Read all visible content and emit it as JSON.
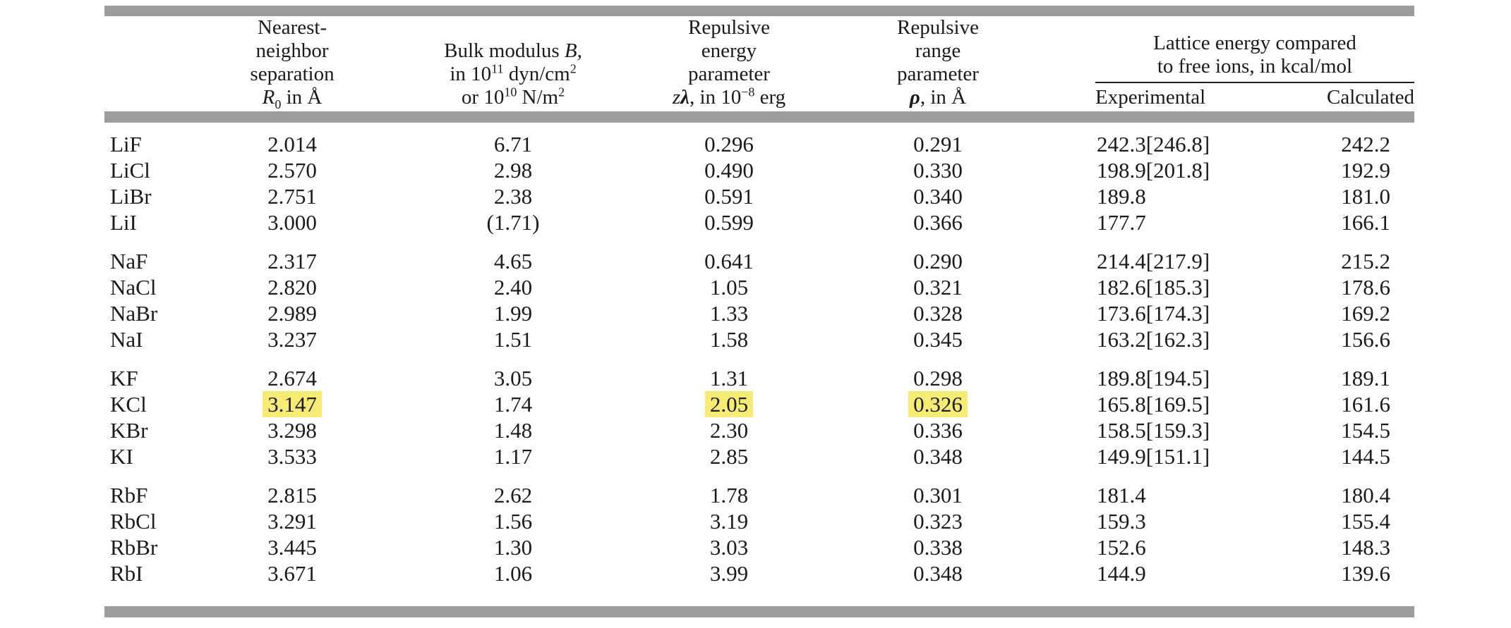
{
  "colors": {
    "double_rule_gray": "#9d9d9d",
    "highlight_yellow": "#f6ec72",
    "text_ink": "#1b1b1b",
    "spanner_rule": "#1f1f1f",
    "background": "#ffffff"
  },
  "header": {
    "r0": {
      "lines": [
        "Nearest-",
        "neighbor",
        "separation"
      ],
      "sym": "R",
      "sub": "0",
      "rest": " in Å"
    },
    "bulk": {
      "pre": "Bulk modulus ",
      "sym": "B",
      "post": ",",
      "l2a": "in 10",
      "l2sup": "11",
      "l2b": " dyn/cm",
      "l2sup2": "2",
      "l3a": "or 10",
      "l3sup": "10",
      "l3b": " N/m",
      "l3sup2": "2"
    },
    "zl": {
      "lines": [
        "Repulsive",
        "energy",
        "parameter"
      ],
      "sym1": "z",
      "sym2": "λ",
      "resta": ", in 10",
      "restsup": "−8",
      "restb": " erg"
    },
    "rho": {
      "lines": [
        "Repulsive",
        "range",
        "parameter"
      ],
      "sym": "ρ",
      "rest": ", in Å"
    },
    "lattice": {
      "title1": "Lattice energy compared",
      "title2": "to free ions, in kcal/mol",
      "experimental": "Experimental",
      "calculated": "Calculated"
    }
  },
  "table": {
    "column_keys": [
      "name",
      "r0",
      "bulk",
      "zl",
      "rho",
      "exp",
      "calc"
    ],
    "groups": [
      {
        "rows": [
          {
            "name": "LiF",
            "r0": "2.014",
            "bulk": "6.71",
            "zl": "0.296",
            "rho": "0.291",
            "exp": "242.3[246.8]",
            "calc": "242.2"
          },
          {
            "name": "LiCl",
            "r0": "2.570",
            "bulk": "2.98",
            "zl": "0.490",
            "rho": "0.330",
            "exp": "198.9[201.8]",
            "calc": "192.9"
          },
          {
            "name": "LiBr",
            "r0": "2.751",
            "bulk": "2.38",
            "zl": "0.591",
            "rho": "0.340",
            "exp": "189.8",
            "calc": "181.0"
          },
          {
            "name": "LiI",
            "r0": "3.000",
            "bulk": "(1.71)",
            "zl": "0.599",
            "rho": "0.366",
            "exp": "177.7",
            "calc": "166.1"
          }
        ]
      },
      {
        "rows": [
          {
            "name": "NaF",
            "r0": "2.317",
            "bulk": "4.65",
            "zl": "0.641",
            "rho": "0.290",
            "exp": "214.4[217.9]",
            "calc": "215.2"
          },
          {
            "name": "NaCl",
            "r0": "2.820",
            "bulk": "2.40",
            "zl": "1.05",
            "rho": "0.321",
            "exp": "182.6[185.3]",
            "calc": "178.6"
          },
          {
            "name": "NaBr",
            "r0": "2.989",
            "bulk": "1.99",
            "zl": "1.33",
            "rho": "0.328",
            "exp": "173.6[174.3]",
            "calc": "169.2"
          },
          {
            "name": "NaI",
            "r0": "3.237",
            "bulk": "1.51",
            "zl": "1.58",
            "rho": "0.345",
            "exp": "163.2[162.3]",
            "calc": "156.6"
          }
        ]
      },
      {
        "rows": [
          {
            "name": "KF",
            "r0": "2.674",
            "bulk": "3.05",
            "zl": "1.31",
            "rho": "0.298",
            "exp": "189.8[194.5]",
            "calc": "189.1"
          },
          {
            "name": "KCl",
            "r0": "3.147",
            "bulk": "1.74",
            "zl": "2.05",
            "rho": "0.326",
            "exp": "165.8[169.5]",
            "calc": "161.6",
            "highlight": [
              "r0",
              "zl",
              "rho"
            ]
          },
          {
            "name": "KBr",
            "r0": "3.298",
            "bulk": "1.48",
            "zl": "2.30",
            "rho": "0.336",
            "exp": "158.5[159.3]",
            "calc": "154.5"
          },
          {
            "name": "KI",
            "r0": "3.533",
            "bulk": "1.17",
            "zl": "2.85",
            "rho": "0.348",
            "exp": "149.9[151.1]",
            "calc": "144.5"
          }
        ]
      },
      {
        "rows": [
          {
            "name": "RbF",
            "r0": "2.815",
            "bulk": "2.62",
            "zl": "1.78",
            "rho": "0.301",
            "exp": "181.4",
            "calc": "180.4"
          },
          {
            "name": "RbCl",
            "r0": "3.291",
            "bulk": "1.56",
            "zl": "3.19",
            "rho": "0.323",
            "exp": "159.3",
            "calc": "155.4"
          },
          {
            "name": "RbBr",
            "r0": "3.445",
            "bulk": "1.30",
            "zl": "3.03",
            "rho": "0.338",
            "exp": "152.6",
            "calc": "148.3"
          },
          {
            "name": "RbI",
            "r0": "3.671",
            "bulk": "1.06",
            "zl": "3.99",
            "rho": "0.348",
            "exp": "144.9",
            "calc": "139.6"
          }
        ]
      }
    ]
  }
}
